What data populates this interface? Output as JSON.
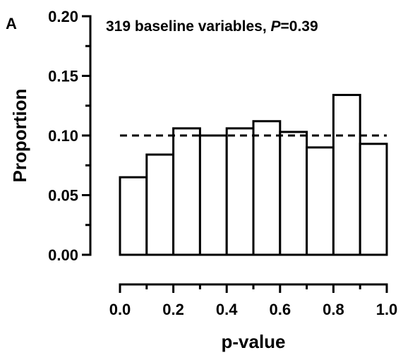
{
  "panel_label": "A",
  "chart_data": {
    "type": "bar",
    "title_prefix": "319 baseline variables, ",
    "title_stat": "P",
    "title_value": "=0.39",
    "xlabel": "p-value",
    "ylabel": "Proportion",
    "xlim": [
      0.0,
      1.0
    ],
    "ylim": [
      0.0,
      0.2
    ],
    "xticks": [
      "0.0",
      "0.2",
      "0.4",
      "0.6",
      "0.8",
      "1.0"
    ],
    "yticks": [
      "0.00",
      "0.05",
      "0.10",
      "0.15",
      "0.20"
    ],
    "bin_edges": [
      0.0,
      0.1,
      0.2,
      0.3,
      0.4,
      0.5,
      0.6,
      0.7,
      0.8,
      0.9,
      1.0
    ],
    "values": [
      0.065,
      0.084,
      0.106,
      0.1,
      0.106,
      0.112,
      0.103,
      0.09,
      0.134,
      0.093
    ],
    "reference_line": 0.1,
    "reference_style": "dashed",
    "bar_fill": "#ffffff",
    "bar_edge": "#000000"
  }
}
